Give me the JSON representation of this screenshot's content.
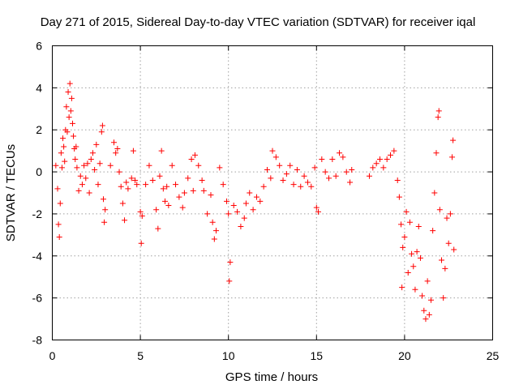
{
  "chart_data": {
    "type": "scatter",
    "title": "Day 271 of 2015, Sidereal Day-to-day VTEC variation (SDTVAR) for receiver iqal",
    "xlabel": "GPS time / hours",
    "ylabel": "SDTVAR / TECUs",
    "xlim": [
      0,
      25
    ],
    "ylim": [
      -8,
      6
    ],
    "xticks": [
      "0",
      "5",
      "10",
      "15",
      "20",
      "25"
    ],
    "yticks": [
      "-8",
      "-6",
      "-4",
      "-2",
      "0",
      "2",
      "4",
      "6"
    ],
    "grid": true,
    "marker": "+",
    "color": "#ff0000",
    "series": [
      {
        "name": "SDTVAR",
        "points": [
          [
            0.2,
            0.3
          ],
          [
            0.3,
            -0.8
          ],
          [
            0.35,
            -2.5
          ],
          [
            0.4,
            -3.1
          ],
          [
            0.45,
            -1.5
          ],
          [
            0.5,
            0.9
          ],
          [
            0.55,
            0.2
          ],
          [
            0.6,
            1.6
          ],
          [
            0.65,
            1.2
          ],
          [
            0.7,
            0.5
          ],
          [
            0.75,
            2.0
          ],
          [
            0.8,
            3.1
          ],
          [
            0.85,
            1.9
          ],
          [
            0.9,
            3.8
          ],
          [
            0.95,
            2.6
          ],
          [
            1.0,
            4.2
          ],
          [
            1.05,
            2.9
          ],
          [
            1.1,
            3.5
          ],
          [
            1.15,
            2.3
          ],
          [
            1.2,
            1.7
          ],
          [
            1.25,
            1.1
          ],
          [
            1.3,
            0.6
          ],
          [
            1.35,
            1.2
          ],
          [
            1.4,
            0.2
          ],
          [
            1.5,
            -0.9
          ],
          [
            1.6,
            -0.2
          ],
          [
            1.7,
            -0.6
          ],
          [
            1.8,
            0.3
          ],
          [
            1.9,
            -0.3
          ],
          [
            2.0,
            0.4
          ],
          [
            2.1,
            -1.0
          ],
          [
            2.2,
            0.6
          ],
          [
            2.3,
            0.9
          ],
          [
            2.4,
            0.1
          ],
          [
            2.5,
            1.3
          ],
          [
            2.6,
            -0.6
          ],
          [
            2.7,
            0.4
          ],
          [
            2.8,
            1.9
          ],
          [
            2.85,
            2.2
          ],
          [
            2.9,
            -1.3
          ],
          [
            2.95,
            -2.4
          ],
          [
            3.0,
            -1.8
          ],
          [
            3.3,
            0.3
          ],
          [
            3.5,
            1.4
          ],
          [
            3.6,
            0.9
          ],
          [
            3.7,
            1.1
          ],
          [
            3.8,
            0.0
          ],
          [
            3.9,
            -0.7
          ],
          [
            4.0,
            -1.5
          ],
          [
            4.1,
            -2.3
          ],
          [
            4.2,
            -0.5
          ],
          [
            4.3,
            -0.8
          ],
          [
            4.5,
            -0.3
          ],
          [
            4.6,
            1.0
          ],
          [
            4.7,
            -0.4
          ],
          [
            4.8,
            -0.6
          ],
          [
            5.0,
            -1.9
          ],
          [
            5.05,
            -3.4
          ],
          [
            5.1,
            -2.1
          ],
          [
            5.3,
            -0.6
          ],
          [
            5.5,
            0.3
          ],
          [
            5.7,
            -0.4
          ],
          [
            5.9,
            -1.8
          ],
          [
            6.0,
            -2.7
          ],
          [
            6.1,
            -0.2
          ],
          [
            6.2,
            1.0
          ],
          [
            6.3,
            -0.8
          ],
          [
            6.4,
            -1.4
          ],
          [
            6.5,
            -0.7
          ],
          [
            6.6,
            -1.6
          ],
          [
            6.8,
            0.3
          ],
          [
            7.0,
            -0.6
          ],
          [
            7.2,
            -1.2
          ],
          [
            7.4,
            -1.7
          ],
          [
            7.5,
            -1.0
          ],
          [
            7.7,
            -0.3
          ],
          [
            7.9,
            0.6
          ],
          [
            8.0,
            -0.9
          ],
          [
            8.1,
            0.8
          ],
          [
            8.3,
            0.3
          ],
          [
            8.5,
            -0.4
          ],
          [
            8.6,
            -0.9
          ],
          [
            8.8,
            -2.0
          ],
          [
            9.0,
            -1.1
          ],
          [
            9.1,
            -2.4
          ],
          [
            9.2,
            -3.2
          ],
          [
            9.3,
            -2.8
          ],
          [
            9.5,
            0.2
          ],
          [
            9.7,
            -0.6
          ],
          [
            9.9,
            -1.4
          ],
          [
            10.0,
            -2.0
          ],
          [
            10.05,
            -5.2
          ],
          [
            10.1,
            -4.3
          ],
          [
            10.3,
            -1.6
          ],
          [
            10.5,
            -1.9
          ],
          [
            10.7,
            -2.6
          ],
          [
            10.9,
            -2.2
          ],
          [
            11.0,
            -1.5
          ],
          [
            11.2,
            -1.0
          ],
          [
            11.4,
            -1.8
          ],
          [
            11.6,
            -1.2
          ],
          [
            11.8,
            -1.4
          ],
          [
            12.0,
            -0.7
          ],
          [
            12.2,
            0.1
          ],
          [
            12.4,
            -0.3
          ],
          [
            12.5,
            1.0
          ],
          [
            12.7,
            0.7
          ],
          [
            12.9,
            0.3
          ],
          [
            13.1,
            -0.4
          ],
          [
            13.3,
            -0.1
          ],
          [
            13.5,
            0.3
          ],
          [
            13.7,
            -0.6
          ],
          [
            13.9,
            0.1
          ],
          [
            14.1,
            -0.7
          ],
          [
            14.3,
            -0.2
          ],
          [
            14.5,
            -0.5
          ],
          [
            14.7,
            -0.7
          ],
          [
            14.9,
            0.2
          ],
          [
            15.0,
            -1.7
          ],
          [
            15.1,
            -1.9
          ],
          [
            15.3,
            0.6
          ],
          [
            15.5,
            0.0
          ],
          [
            15.7,
            -0.3
          ],
          [
            15.9,
            0.6
          ],
          [
            16.1,
            -0.2
          ],
          [
            16.3,
            0.9
          ],
          [
            16.5,
            0.7
          ],
          [
            16.7,
            0.0
          ],
          [
            16.9,
            -0.5
          ],
          [
            17.0,
            0.1
          ],
          [
            18.0,
            -0.2
          ],
          [
            18.2,
            0.2
          ],
          [
            18.4,
            0.4
          ],
          [
            18.6,
            0.6
          ],
          [
            18.8,
            0.2
          ],
          [
            19.0,
            0.6
          ],
          [
            19.2,
            0.8
          ],
          [
            19.4,
            1.0
          ],
          [
            19.6,
            -0.4
          ],
          [
            19.7,
            -1.2
          ],
          [
            19.8,
            -2.5
          ],
          [
            19.85,
            -5.5
          ],
          [
            19.9,
            -3.6
          ],
          [
            20.0,
            -3.1
          ],
          [
            20.1,
            -1.9
          ],
          [
            20.2,
            -4.8
          ],
          [
            20.3,
            -2.4
          ],
          [
            20.4,
            -3.9
          ],
          [
            20.5,
            -4.5
          ],
          [
            20.6,
            -5.6
          ],
          [
            20.7,
            -3.8
          ],
          [
            20.8,
            -2.6
          ],
          [
            20.9,
            -4.1
          ],
          [
            21.0,
            -5.9
          ],
          [
            21.1,
            -6.6
          ],
          [
            21.2,
            -7.0
          ],
          [
            21.3,
            -5.2
          ],
          [
            21.4,
            -6.8
          ],
          [
            21.5,
            -6.1
          ],
          [
            21.6,
            -2.8
          ],
          [
            21.7,
            -1.0
          ],
          [
            21.8,
            0.9
          ],
          [
            21.9,
            2.6
          ],
          [
            21.95,
            2.9
          ],
          [
            22.0,
            -1.8
          ],
          [
            22.1,
            -4.2
          ],
          [
            22.2,
            -6.0
          ],
          [
            22.3,
            -4.6
          ],
          [
            22.4,
            -2.2
          ],
          [
            22.5,
            -3.4
          ],
          [
            22.6,
            -2.0
          ],
          [
            22.7,
            0.7
          ],
          [
            22.75,
            1.5
          ],
          [
            22.8,
            -3.7
          ]
        ]
      }
    ]
  }
}
